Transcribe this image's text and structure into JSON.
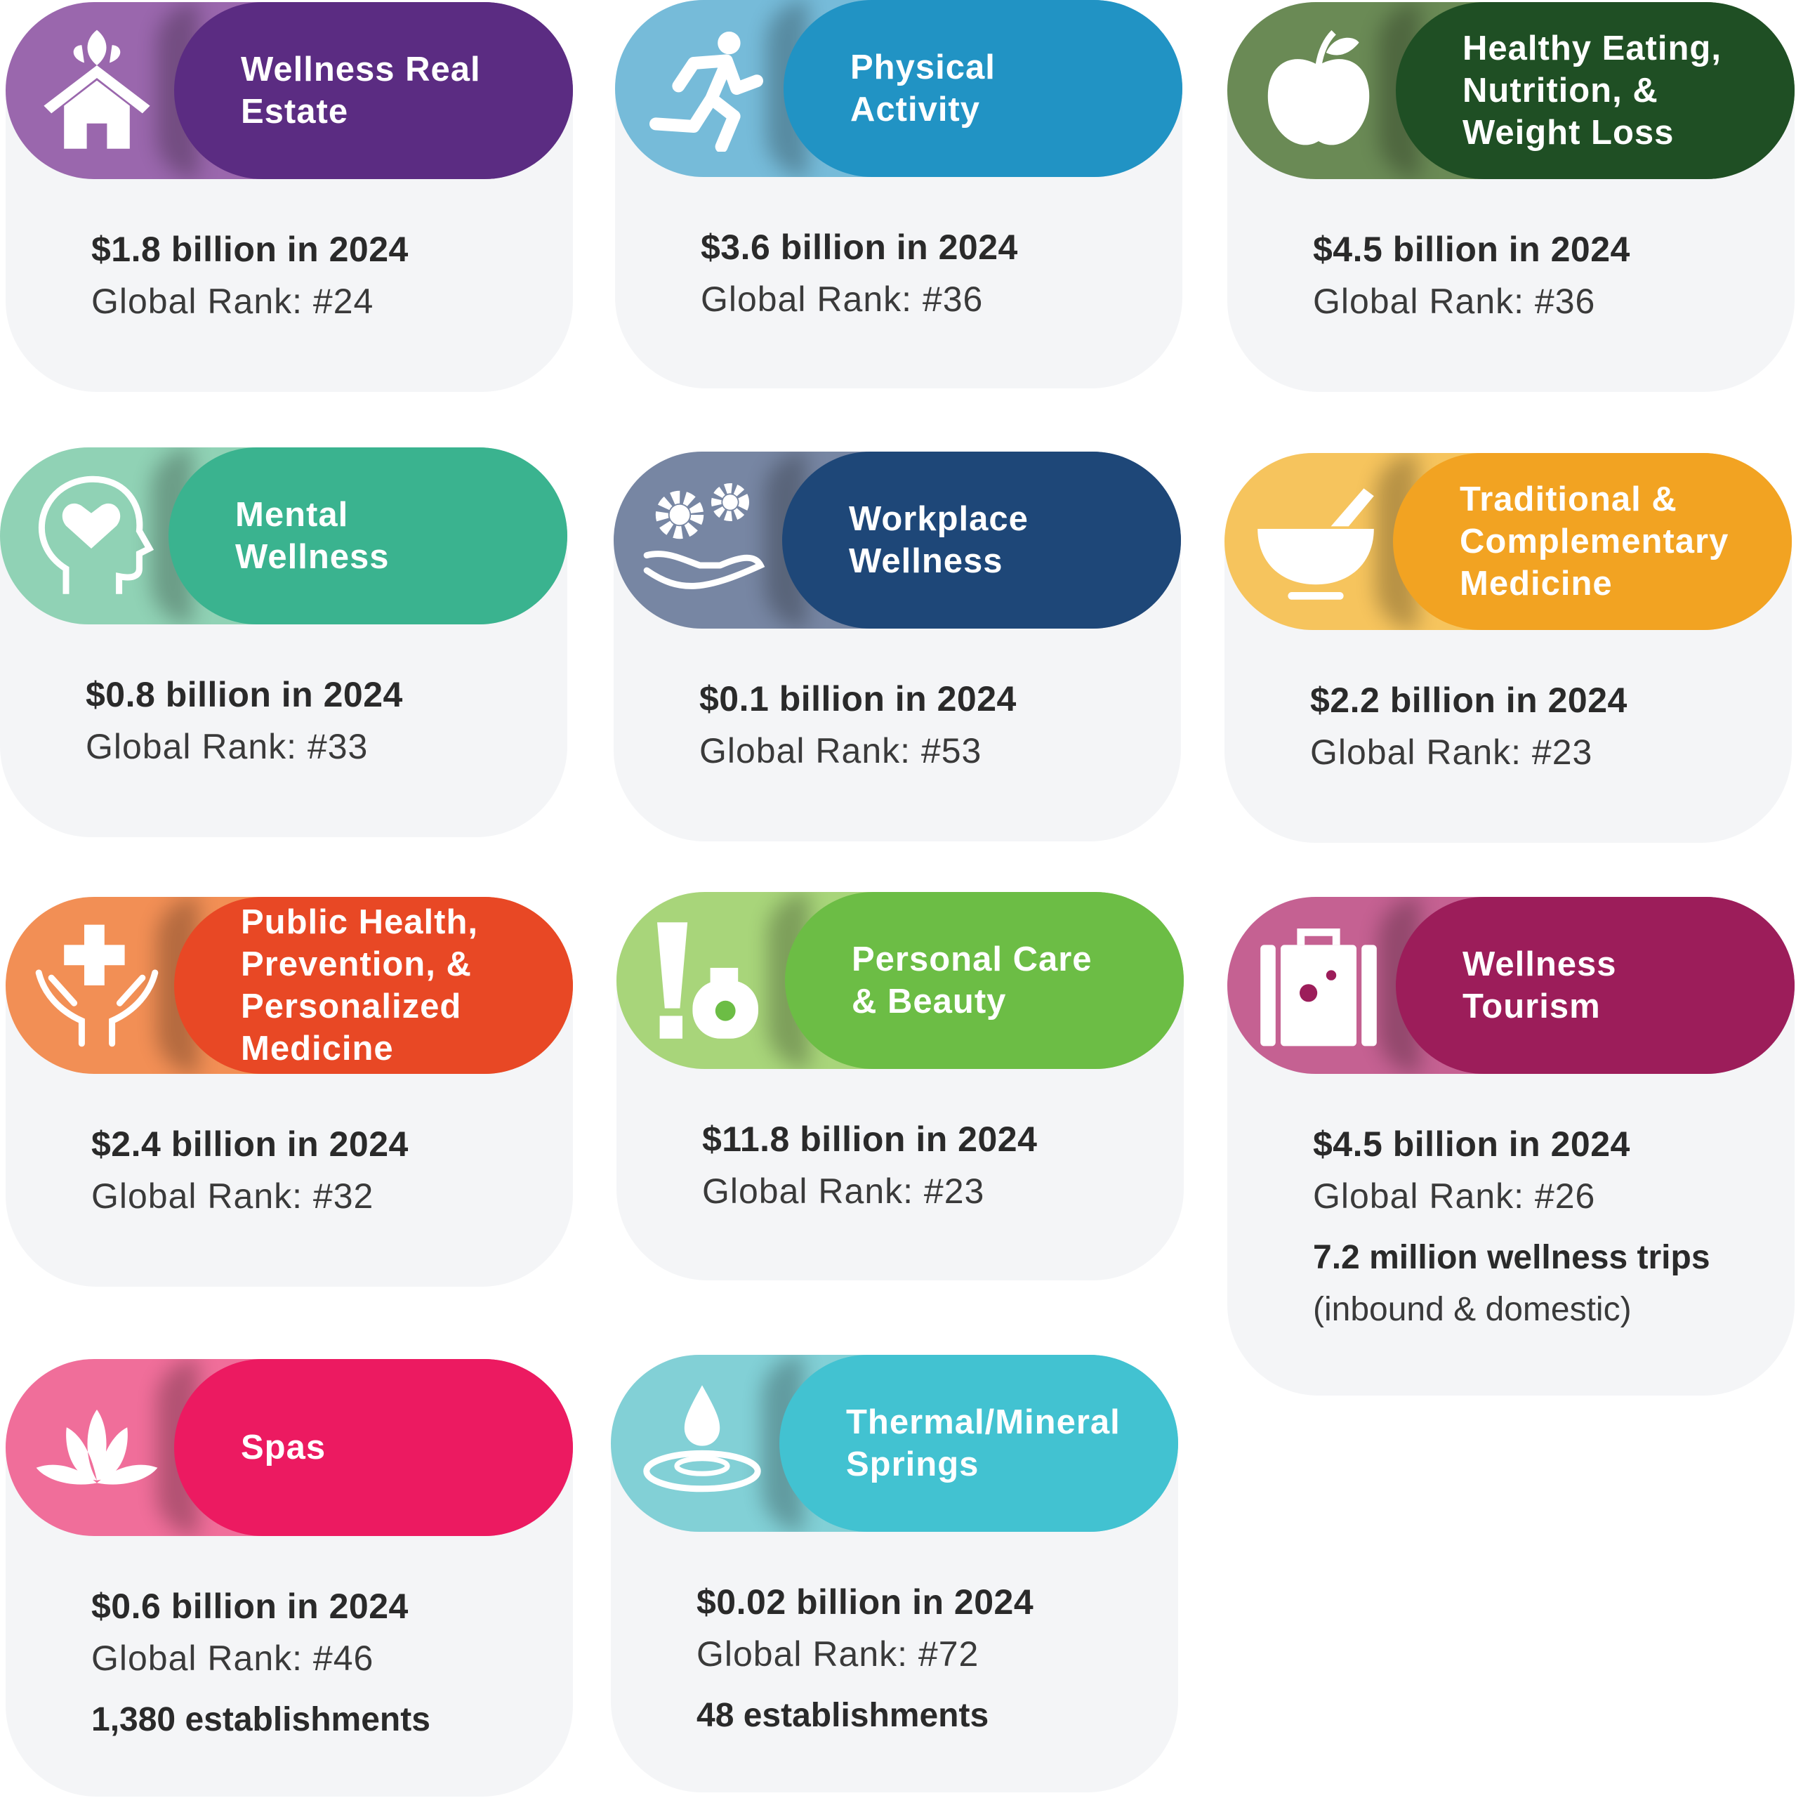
{
  "cards": [
    {
      "title": "Wellness Real\nEstate",
      "value": "$1.8 billion in 2024",
      "rank": "Global Rank: #24",
      "icon": "house-leaf-icon",
      "light": "#9a67ad",
      "dark": "#5b2c82"
    },
    {
      "title": "Physical\nActivity",
      "value": "$3.6 billion in 2024",
      "rank": "Global Rank: #36",
      "icon": "running-person-icon",
      "light": "#76bbd9",
      "dark": "#2193c4"
    },
    {
      "title": "Healthy Eating,\nNutrition, &\nWeight Loss",
      "value": "$4.5 billion in 2024",
      "rank": "Global Rank: #36",
      "icon": "apple-icon",
      "light": "#6a8a55",
      "dark": "#1f4f24"
    },
    {
      "title": "Mental\nWellness",
      "value": "$0.8 billion in 2024",
      "rank": "Global Rank: #33",
      "icon": "head-heart-icon",
      "light": "#90d2b5",
      "dark": "#3ab38f"
    },
    {
      "title": "Workplace\nWellness",
      "value": "$0.1 billion in 2024",
      "rank": "Global Rank: #53",
      "icon": "gears-hand-icon",
      "light": "#7786a3",
      "dark": "#1e4778"
    },
    {
      "title": "Traditional &\nComplementary\nMedicine",
      "value": "$2.2 billion in 2024",
      "rank": "Global Rank: #23",
      "icon": "mortar-pestle-icon",
      "light": "#f6c45d",
      "dark": "#f2a322"
    },
    {
      "title": "Public Health,\nPrevention, &\nPersonalized\nMedicine",
      "value": "$2.4 billion in 2024",
      "rank": "Global Rank: #32",
      "icon": "hands-cross-icon",
      "light": "#f28f55",
      "dark": "#e84825"
    },
    {
      "title": "Personal Care\n& Beauty",
      "value": "$11.8 billion in 2024",
      "rank": "Global Rank: #23",
      "icon": "cosmetics-icon",
      "light": "#a8d57a",
      "dark": "#6cbd45"
    },
    {
      "title": "Wellness\nTourism",
      "value": "$4.5 billion in 2024",
      "rank": "Global Rank: #26",
      "extra": "7.2 million wellness trips",
      "extra2": "(inbound & domestic)",
      "icon": "suitcase-icon",
      "light": "#c56192",
      "dark": "#9c1d5a"
    },
    {
      "title": "Spas",
      "value": "$0.6 billion in 2024",
      "rank": "Global Rank: #46",
      "extra": "1,380 establishments",
      "icon": "lotus-icon",
      "light": "#f06e9a",
      "dark": "#ec1a61"
    },
    {
      "title": "Thermal/Mineral\nSprings",
      "value": "$0.02 billion in 2024",
      "rank": "Global Rank: #72",
      "extra": "48 establishments",
      "icon": "water-drop-icon",
      "light": "#82d0d6",
      "dark": "#42c2d1"
    }
  ]
}
